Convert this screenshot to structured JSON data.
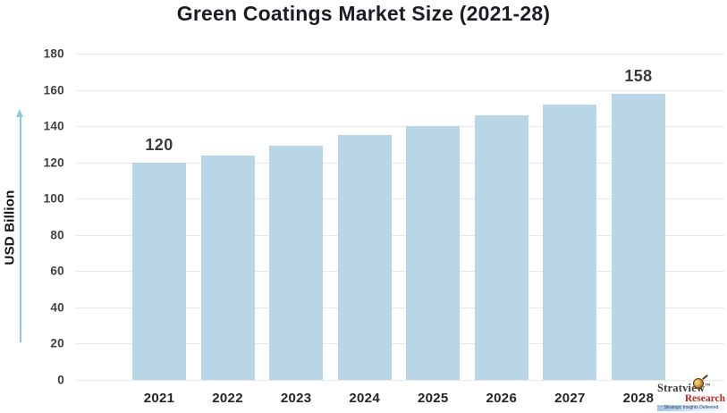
{
  "title": "Green Coatings Market Size (2021-28)",
  "y_axis_label": "USD Billion",
  "chart_data": {
    "type": "bar",
    "title": "Green Coatings Market Size (2021-28)",
    "categories": [
      "2021",
      "2022",
      "2023",
      "2024",
      "2025",
      "2026",
      "2027",
      "2028"
    ],
    "values": [
      120,
      124,
      129,
      135,
      140,
      146,
      152,
      158
    ],
    "data_labels": [
      "120",
      "",
      "",
      "",
      "",
      "",
      "",
      "158"
    ],
    "xlabel": "",
    "ylabel": "USD Billion",
    "ylim": [
      0,
      180
    ],
    "yticks": [
      0,
      20,
      40,
      60,
      80,
      100,
      120,
      140,
      160,
      180
    ],
    "grid": true,
    "legend": false,
    "bar_color": "#b9d6e6"
  },
  "colors": {
    "bar": "#b9d6e6",
    "gridline": "#e9e9e9",
    "axis_arrow": "#8dcadd",
    "title_text": "#1c1c22",
    "tick_text": "#3f3f3f",
    "category_text": "#242424",
    "data_label_text": "#3a3a3a",
    "background": "#ffffff",
    "logo_research_red": "#c4251f"
  },
  "branding": {
    "name": "Stratview",
    "trademark": "TM",
    "division": "Research",
    "tagline": "Strategic Insights Delivered"
  }
}
